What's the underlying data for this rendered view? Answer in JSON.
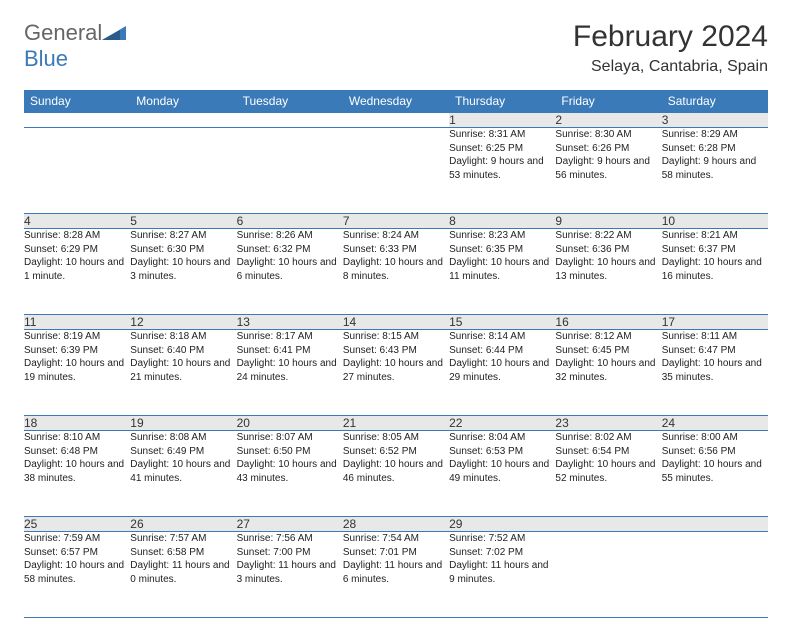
{
  "brand": {
    "general": "General",
    "blue": "Blue"
  },
  "title": "February 2024",
  "location": "Selaya, Cantabria, Spain",
  "colors": {
    "header_bg": "#3a7ab8",
    "header_text": "#ffffff",
    "daynum_bg": "#e8e8e8",
    "border": "#3a7ab8",
    "body_text": "#222222"
  },
  "weekdays": [
    "Sunday",
    "Monday",
    "Tuesday",
    "Wednesday",
    "Thursday",
    "Friday",
    "Saturday"
  ],
  "weeks": [
    [
      null,
      null,
      null,
      null,
      {
        "n": "1",
        "sr": "Sunrise: 8:31 AM",
        "ss": "Sunset: 6:25 PM",
        "dl": "Daylight: 9 hours and 53 minutes."
      },
      {
        "n": "2",
        "sr": "Sunrise: 8:30 AM",
        "ss": "Sunset: 6:26 PM",
        "dl": "Daylight: 9 hours and 56 minutes."
      },
      {
        "n": "3",
        "sr": "Sunrise: 8:29 AM",
        "ss": "Sunset: 6:28 PM",
        "dl": "Daylight: 9 hours and 58 minutes."
      }
    ],
    [
      {
        "n": "4",
        "sr": "Sunrise: 8:28 AM",
        "ss": "Sunset: 6:29 PM",
        "dl": "Daylight: 10 hours and 1 minute."
      },
      {
        "n": "5",
        "sr": "Sunrise: 8:27 AM",
        "ss": "Sunset: 6:30 PM",
        "dl": "Daylight: 10 hours and 3 minutes."
      },
      {
        "n": "6",
        "sr": "Sunrise: 8:26 AM",
        "ss": "Sunset: 6:32 PM",
        "dl": "Daylight: 10 hours and 6 minutes."
      },
      {
        "n": "7",
        "sr": "Sunrise: 8:24 AM",
        "ss": "Sunset: 6:33 PM",
        "dl": "Daylight: 10 hours and 8 minutes."
      },
      {
        "n": "8",
        "sr": "Sunrise: 8:23 AM",
        "ss": "Sunset: 6:35 PM",
        "dl": "Daylight: 10 hours and 11 minutes."
      },
      {
        "n": "9",
        "sr": "Sunrise: 8:22 AM",
        "ss": "Sunset: 6:36 PM",
        "dl": "Daylight: 10 hours and 13 minutes."
      },
      {
        "n": "10",
        "sr": "Sunrise: 8:21 AM",
        "ss": "Sunset: 6:37 PM",
        "dl": "Daylight: 10 hours and 16 minutes."
      }
    ],
    [
      {
        "n": "11",
        "sr": "Sunrise: 8:19 AM",
        "ss": "Sunset: 6:39 PM",
        "dl": "Daylight: 10 hours and 19 minutes."
      },
      {
        "n": "12",
        "sr": "Sunrise: 8:18 AM",
        "ss": "Sunset: 6:40 PM",
        "dl": "Daylight: 10 hours and 21 minutes."
      },
      {
        "n": "13",
        "sr": "Sunrise: 8:17 AM",
        "ss": "Sunset: 6:41 PM",
        "dl": "Daylight: 10 hours and 24 minutes."
      },
      {
        "n": "14",
        "sr": "Sunrise: 8:15 AM",
        "ss": "Sunset: 6:43 PM",
        "dl": "Daylight: 10 hours and 27 minutes."
      },
      {
        "n": "15",
        "sr": "Sunrise: 8:14 AM",
        "ss": "Sunset: 6:44 PM",
        "dl": "Daylight: 10 hours and 29 minutes."
      },
      {
        "n": "16",
        "sr": "Sunrise: 8:12 AM",
        "ss": "Sunset: 6:45 PM",
        "dl": "Daylight: 10 hours and 32 minutes."
      },
      {
        "n": "17",
        "sr": "Sunrise: 8:11 AM",
        "ss": "Sunset: 6:47 PM",
        "dl": "Daylight: 10 hours and 35 minutes."
      }
    ],
    [
      {
        "n": "18",
        "sr": "Sunrise: 8:10 AM",
        "ss": "Sunset: 6:48 PM",
        "dl": "Daylight: 10 hours and 38 minutes."
      },
      {
        "n": "19",
        "sr": "Sunrise: 8:08 AM",
        "ss": "Sunset: 6:49 PM",
        "dl": "Daylight: 10 hours and 41 minutes."
      },
      {
        "n": "20",
        "sr": "Sunrise: 8:07 AM",
        "ss": "Sunset: 6:50 PM",
        "dl": "Daylight: 10 hours and 43 minutes."
      },
      {
        "n": "21",
        "sr": "Sunrise: 8:05 AM",
        "ss": "Sunset: 6:52 PM",
        "dl": "Daylight: 10 hours and 46 minutes."
      },
      {
        "n": "22",
        "sr": "Sunrise: 8:04 AM",
        "ss": "Sunset: 6:53 PM",
        "dl": "Daylight: 10 hours and 49 minutes."
      },
      {
        "n": "23",
        "sr": "Sunrise: 8:02 AM",
        "ss": "Sunset: 6:54 PM",
        "dl": "Daylight: 10 hours and 52 minutes."
      },
      {
        "n": "24",
        "sr": "Sunrise: 8:00 AM",
        "ss": "Sunset: 6:56 PM",
        "dl": "Daylight: 10 hours and 55 minutes."
      }
    ],
    [
      {
        "n": "25",
        "sr": "Sunrise: 7:59 AM",
        "ss": "Sunset: 6:57 PM",
        "dl": "Daylight: 10 hours and 58 minutes."
      },
      {
        "n": "26",
        "sr": "Sunrise: 7:57 AM",
        "ss": "Sunset: 6:58 PM",
        "dl": "Daylight: 11 hours and 0 minutes."
      },
      {
        "n": "27",
        "sr": "Sunrise: 7:56 AM",
        "ss": "Sunset: 7:00 PM",
        "dl": "Daylight: 11 hours and 3 minutes."
      },
      {
        "n": "28",
        "sr": "Sunrise: 7:54 AM",
        "ss": "Sunset: 7:01 PM",
        "dl": "Daylight: 11 hours and 6 minutes."
      },
      {
        "n": "29",
        "sr": "Sunrise: 7:52 AM",
        "ss": "Sunset: 7:02 PM",
        "dl": "Daylight: 11 hours and 9 minutes."
      },
      null,
      null
    ]
  ]
}
